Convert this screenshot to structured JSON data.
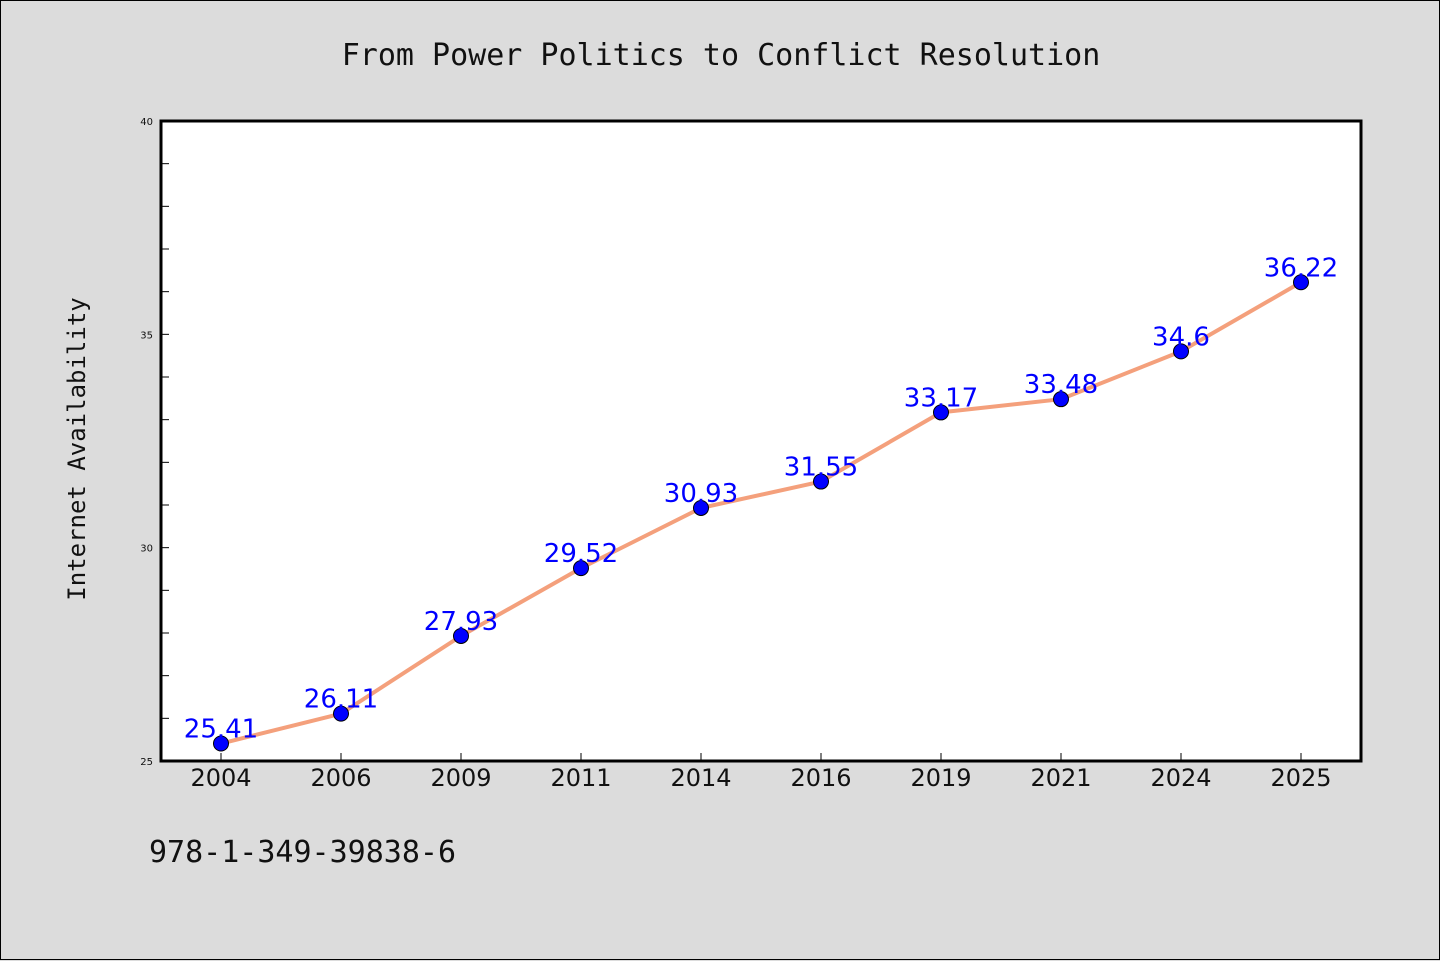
{
  "footnote": "978-1-349-39838-6",
  "colors": {
    "background": "#dcdcdc",
    "plot_area": "#ffffff",
    "line": "#f4a07c",
    "marker": "#0000ff",
    "data_label": "#0000ff"
  },
  "chart_data": {
    "type": "line",
    "title": "From Power Politics to Conflict Resolution",
    "xlabel": "",
    "ylabel": "Internet Availability",
    "categories": [
      "2004",
      "2006",
      "2009",
      "2011",
      "2014",
      "2016",
      "2019",
      "2021",
      "2024",
      "2025"
    ],
    "series": [
      {
        "values": [
          25.41,
          26.11,
          27.93,
          29.52,
          30.93,
          31.55,
          33.17,
          33.48,
          34.6,
          36.22
        ],
        "data_labels": [
          "25.41",
          "26.11",
          "27.93",
          "29.52",
          "30.93",
          "31.55",
          "33.17",
          "33.48",
          "34.6",
          "36.22"
        ]
      }
    ],
    "ylim": [
      25,
      40
    ],
    "yticks": [
      25,
      30,
      35,
      40
    ],
    "grid": false,
    "legend": "none"
  }
}
